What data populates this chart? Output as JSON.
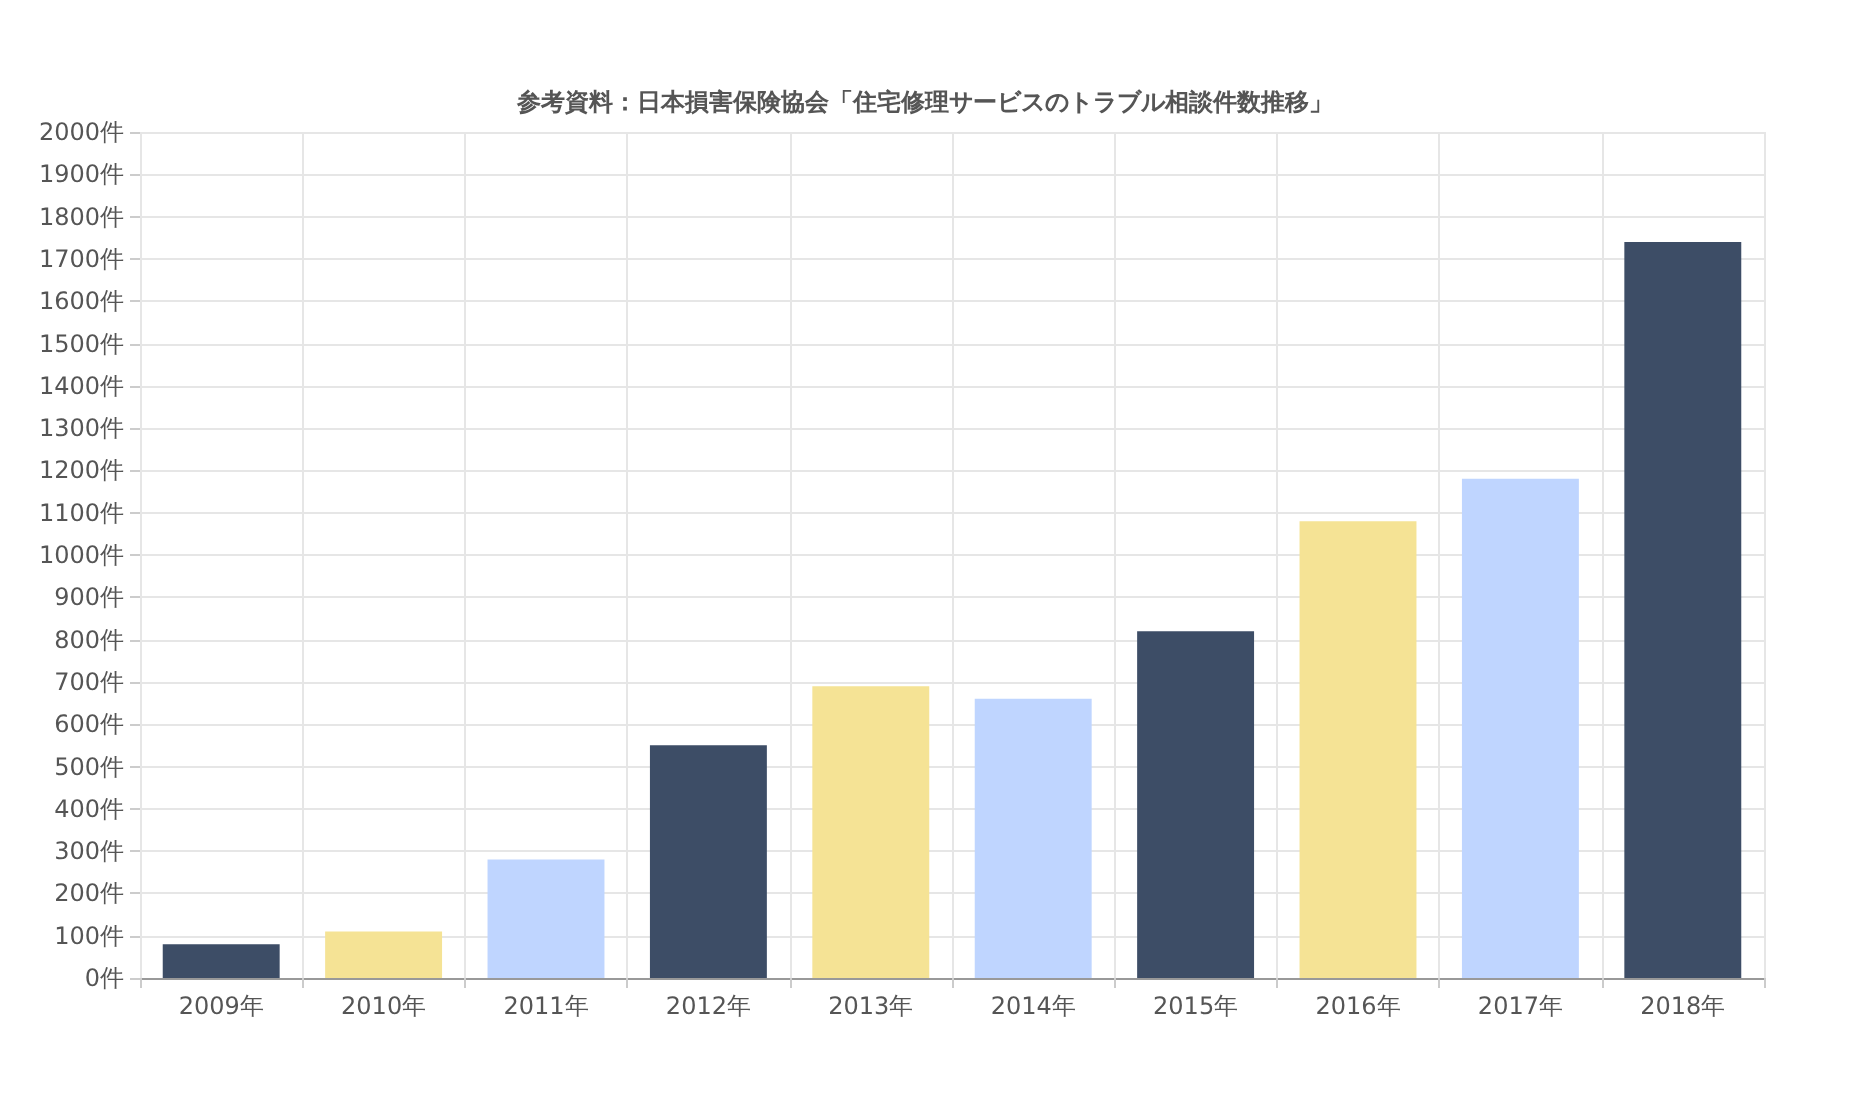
{
  "chart_data": {
    "type": "bar",
    "title": "参考資料：日本損害保険協会「住宅修理サービスのトラブル相談件数推移」",
    "categories": [
      "2009年",
      "2010年",
      "2011年",
      "2012年",
      "2013年",
      "2014年",
      "2015年",
      "2016年",
      "2017年",
      "2018年"
    ],
    "values": [
      80,
      110,
      280,
      550,
      690,
      660,
      820,
      1080,
      1180,
      1740
    ],
    "colors": [
      "#3d4d66",
      "#f5e395",
      "#bfd5ff",
      "#3d4d66",
      "#f5e395",
      "#bfd5ff",
      "#3d4d66",
      "#f5e395",
      "#bfd5ff",
      "#3d4d66"
    ],
    "ylim": [
      0,
      2000
    ],
    "yticks": [
      {
        "value": 0,
        "label": "0件"
      },
      {
        "value": 100,
        "label": "100件"
      },
      {
        "value": 200,
        "label": "200件"
      },
      {
        "value": 300,
        "label": "300件"
      },
      {
        "value": 400,
        "label": "400件"
      },
      {
        "value": 500,
        "label": "500件"
      },
      {
        "value": 600,
        "label": "600件"
      },
      {
        "value": 700,
        "label": "700件"
      },
      {
        "value": 800,
        "label": "800件"
      },
      {
        "value": 900,
        "label": "900件"
      },
      {
        "value": 1000,
        "label": "1000件"
      },
      {
        "value": 1100,
        "label": "1100件"
      },
      {
        "value": 1200,
        "label": "1200件"
      },
      {
        "value": 1300,
        "label": "1300件"
      },
      {
        "value": 1400,
        "label": "1400件"
      },
      {
        "value": 1500,
        "label": "1500件"
      },
      {
        "value": 1600,
        "label": "1600件"
      },
      {
        "value": 1700,
        "label": "1700件"
      },
      {
        "value": 1800,
        "label": "1800件"
      },
      {
        "value": 1900,
        "label": "1900件"
      },
      {
        "value": 2000,
        "label": "2000件"
      }
    ],
    "grid": true
  }
}
